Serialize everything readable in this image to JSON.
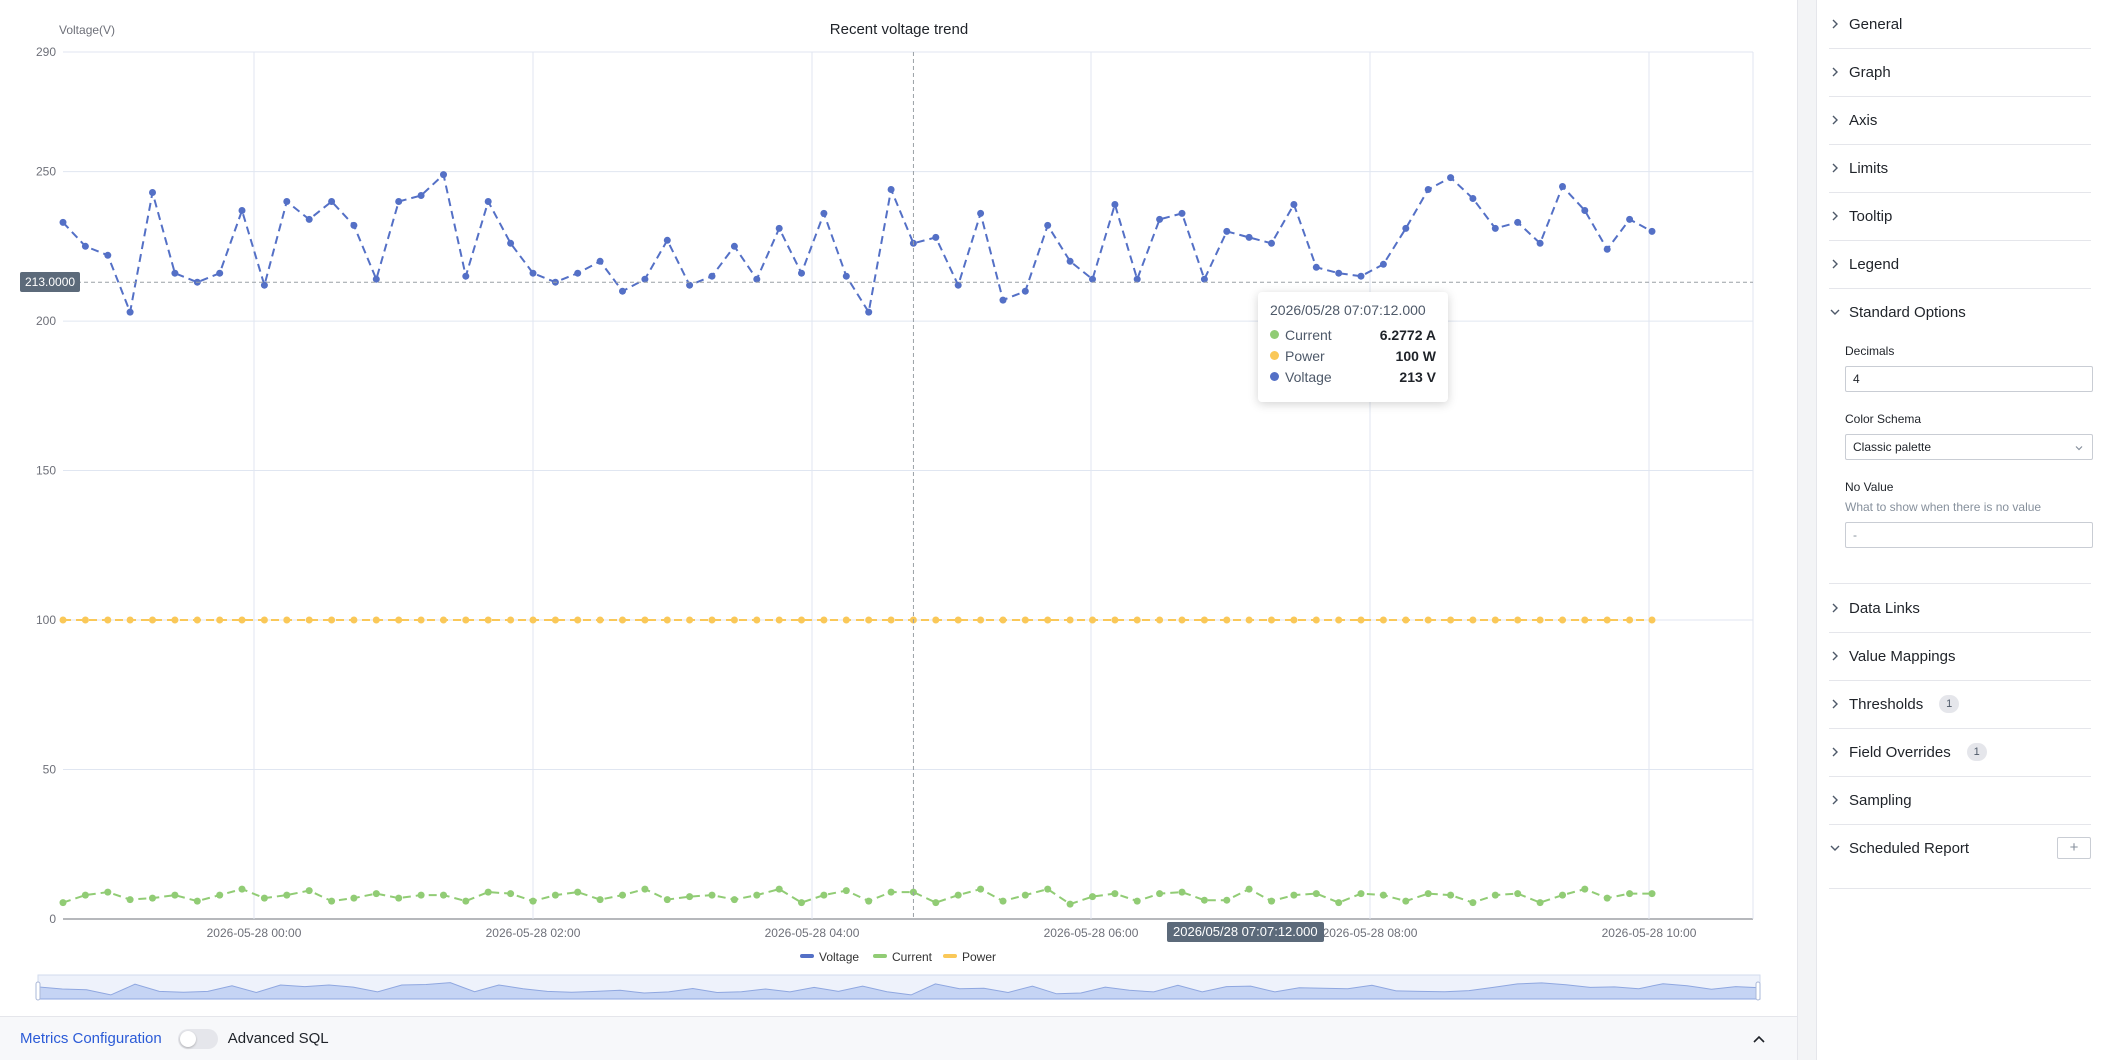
{
  "chart_data": {
    "type": "line",
    "title": "Recent voltage trend",
    "ylabel": "Voltage(V)",
    "ylim": [
      0,
      290
    ],
    "yticks": [
      0,
      50,
      100,
      150,
      200,
      250,
      290
    ],
    "x_start": "2026-05-27 22:38:24",
    "x_step_minutes": 15,
    "xtick_labels": [
      "2026-05-28 00:00",
      "2026-05-28 02:00",
      "2026-05-28 04:00",
      "2026-05-28 06:00",
      "2026-05-28 08:00",
      "2026-05-28 10:00"
    ],
    "series": [
      {
        "name": "Voltage",
        "color": "#5470c6",
        "values": [
          233,
          225,
          222,
          203,
          243,
          216,
          213,
          216,
          237,
          212,
          240,
          234,
          240,
          232,
          214,
          240,
          242,
          249,
          215,
          240,
          226,
          216,
          213,
          216,
          220,
          210,
          214,
          227,
          212,
          215,
          225,
          214,
          231,
          216,
          236,
          215,
          203,
          244,
          226,
          228,
          212,
          236,
          207,
          210,
          232,
          220,
          214,
          239,
          214,
          234,
          236,
          214,
          230,
          228,
          226,
          239,
          218,
          216,
          215,
          219,
          231,
          244,
          248,
          241,
          231,
          233,
          226,
          245,
          237,
          224,
          234,
          230
        ]
      },
      {
        "name": "Current",
        "color": "#91cc75",
        "values": [
          5.5,
          8,
          9,
          6.5,
          7,
          8,
          6,
          8,
          10,
          7,
          8,
          9.5,
          6,
          7,
          8.5,
          7,
          8,
          8,
          6,
          9,
          8.5,
          6,
          8,
          9,
          6.5,
          8,
          10,
          6.5,
          7.5,
          8,
          6.5,
          8,
          10,
          5.5,
          8,
          9.5,
          6,
          9,
          9,
          5.5,
          8,
          10,
          6,
          8,
          10,
          5,
          7.5,
          8.5,
          6,
          8.5,
          9,
          6.3,
          6.3,
          10,
          6,
          8,
          8.5,
          5.5,
          8.5,
          8,
          6,
          8.5,
          8,
          5.5,
          8,
          8.5,
          5.5,
          8,
          10,
          7,
          8.5,
          8.5
        ]
      },
      {
        "name": "Power",
        "color": "#fac858",
        "values": [
          100,
          100,
          100,
          100,
          100,
          100,
          100,
          100,
          100,
          100,
          100,
          100,
          100,
          100,
          100,
          100,
          100,
          100,
          100,
          100,
          100,
          100,
          100,
          100,
          100,
          100,
          100,
          100,
          100,
          100,
          100,
          100,
          100,
          100,
          100,
          100,
          100,
          100,
          100,
          100,
          100,
          100,
          100,
          100,
          100,
          100,
          100,
          100,
          100,
          100,
          100,
          100,
          100,
          100,
          100,
          100,
          100,
          100,
          100,
          100,
          100,
          100,
          100,
          100,
          100,
          100,
          100,
          100,
          100,
          100,
          100,
          100
        ]
      }
    ],
    "legend": [
      "Voltage",
      "Current",
      "Power"
    ],
    "legend_position": "bottom",
    "grid": true,
    "crosshair_y_label": "213.0000",
    "crosshair_x_label": "2026/05/28 07:07:12.000"
  },
  "tooltip": {
    "title": "2026/05/28 07:07:12.000",
    "rows": [
      {
        "name": "Current",
        "value": "6.2772 A",
        "color": "#91cc75"
      },
      {
        "name": "Power",
        "value": "100 W",
        "color": "#fac858"
      },
      {
        "name": "Voltage",
        "value": "213 V",
        "color": "#5470c6"
      }
    ]
  },
  "bottom_bar": {
    "metrics_label": "Metrics Configuration",
    "advanced_sql_label": "Advanced SQL"
  },
  "side_panel": {
    "sections": [
      {
        "label": "General"
      },
      {
        "label": "Graph"
      },
      {
        "label": "Axis"
      },
      {
        "label": "Limits"
      },
      {
        "label": "Tooltip"
      },
      {
        "label": "Legend"
      },
      {
        "label": "Standard Options"
      },
      {
        "label": "Data Links"
      },
      {
        "label": "Value Mappings"
      },
      {
        "label": "Thresholds",
        "badge": "1"
      },
      {
        "label": "Field Overrides",
        "badge": "1"
      },
      {
        "label": "Sampling"
      },
      {
        "label": "Scheduled Report",
        "add": "+"
      }
    ],
    "standard_options": {
      "decimals_label": "Decimals",
      "decimals_value": "4",
      "color_schema_label": "Color Schema",
      "color_schema_value": "Classic palette",
      "no_value_label": "No Value",
      "no_value_desc": "What to show when there is no value",
      "no_value_placeholder": "-"
    }
  }
}
